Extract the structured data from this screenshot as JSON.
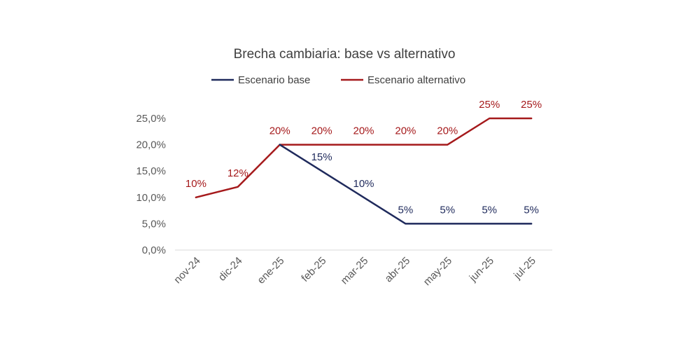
{
  "chart_data": {
    "type": "line",
    "title": "Brecha cambiaria: base vs alternativo",
    "xlabel": "",
    "ylabel": "",
    "categories": [
      "nov-24",
      "dic-24",
      "ene-25",
      "feb-25",
      "mar-25",
      "abr-25",
      "may-25",
      "jun-25",
      "jul-25"
    ],
    "ylim": [
      0,
      25
    ],
    "yticks": [
      0,
      5,
      10,
      15,
      20,
      25
    ],
    "ytick_labels": [
      "0,0%",
      "5,0%",
      "10,0%",
      "15,0%",
      "20,0%",
      "25,0%"
    ],
    "grid": false,
    "legend_position": "top",
    "series": [
      {
        "name": "Escenario base",
        "color": "#1f2a5c",
        "values": [
          null,
          null,
          20,
          15,
          10,
          5,
          5,
          5,
          5
        ],
        "labels": [
          "",
          "",
          "",
          "15%",
          "10%",
          "5%",
          "5%",
          "5%",
          "5%"
        ]
      },
      {
        "name": "Escenario alternativo",
        "color": "#a5191b",
        "values": [
          10,
          12,
          20,
          20,
          20,
          20,
          20,
          25,
          25
        ],
        "labels": [
          "10%",
          "12%",
          "20%",
          "20%",
          "20%",
          "20%",
          "20%",
          "25%",
          "25%"
        ]
      }
    ]
  }
}
